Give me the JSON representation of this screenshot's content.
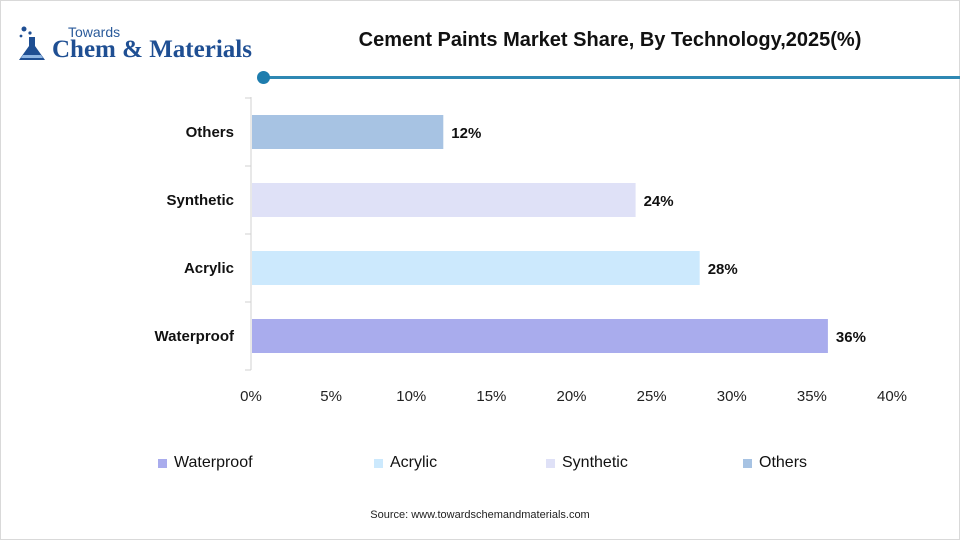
{
  "logo": {
    "top_text": "Towards",
    "main_text": "Chem & Materials"
  },
  "colors": {
    "accent": "#2f88b3",
    "waterproof": "#a9aced",
    "acrylic": "#cce9fd",
    "synthetic": "#dfe1f7",
    "others": "#a7c3e3"
  },
  "source_text": "Source: www.towardschemandmaterials.com",
  "chart_data": {
    "type": "bar",
    "orientation": "horizontal",
    "title": "Cement Paints Market Share, By Technology,2025(%)",
    "xlabel": "",
    "ylabel": "",
    "categories": [
      "Others",
      "Synthetic",
      "Acrylic",
      "Waterproof"
    ],
    "values": [
      12,
      24,
      28,
      36
    ],
    "data_labels": [
      "12%",
      "24%",
      "28%",
      "36%"
    ],
    "bar_colors": [
      "#a7c3e3",
      "#dfe1f7",
      "#cce9fd",
      "#a9aced"
    ],
    "xlim": [
      0,
      40
    ],
    "xticks": [
      0,
      5,
      10,
      15,
      20,
      25,
      30,
      35,
      40
    ],
    "xtick_labels": [
      "0%",
      "5%",
      "10%",
      "15%",
      "20%",
      "25%",
      "30%",
      "35%",
      "40%"
    ],
    "grid": false,
    "legend_position": "bottom",
    "legend": [
      {
        "label": "Waterproof",
        "color": "#a9aced"
      },
      {
        "label": "Acrylic",
        "color": "#cce9fd"
      },
      {
        "label": "Synthetic",
        "color": "#dfe1f7"
      },
      {
        "label": "Others",
        "color": "#a7c3e3"
      }
    ]
  }
}
